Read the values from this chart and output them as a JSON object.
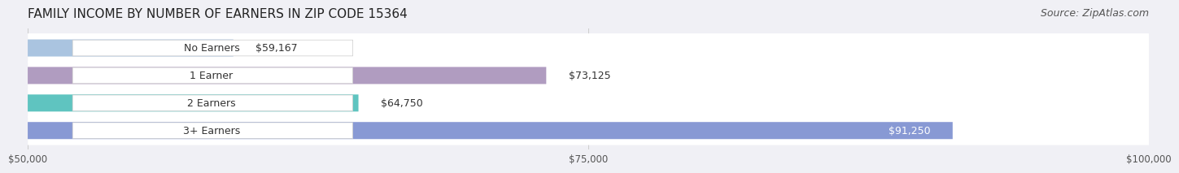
{
  "title": "FAMILY INCOME BY NUMBER OF EARNERS IN ZIP CODE 15364",
  "source": "Source: ZipAtlas.com",
  "categories": [
    "No Earners",
    "1 Earner",
    "2 Earners",
    "3+ Earners"
  ],
  "values": [
    59167,
    73125,
    64750,
    91250
  ],
  "labels": [
    "$59,167",
    "$73,125",
    "$64,750",
    "$91,250"
  ],
  "bar_colors": [
    "#aac4e0",
    "#b09cc0",
    "#5fc4c0",
    "#8899d4"
  ],
  "bar_bg_color": "#e8e8ee",
  "xlim": [
    50000,
    100000
  ],
  "xticks": [
    50000,
    75000,
    100000
  ],
  "xtick_labels": [
    "$50,000",
    "$75,000",
    "$100,000"
  ],
  "title_fontsize": 11,
  "source_fontsize": 9,
  "label_fontsize": 9,
  "category_fontsize": 9,
  "background_color": "#f0f0f5",
  "row_bg_colors": [
    "#e8e8ee",
    "#e8e8ee",
    "#e8e8ee",
    "#e8e8ee"
  ]
}
